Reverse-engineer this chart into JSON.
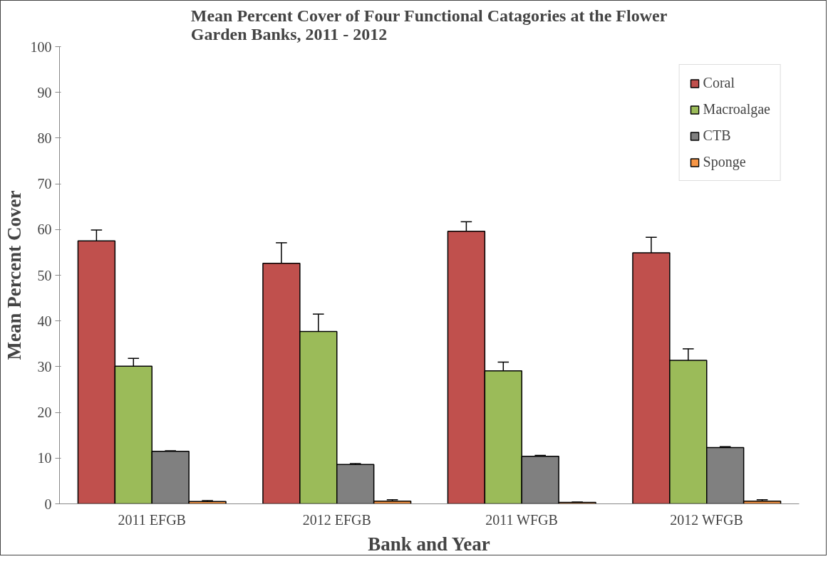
{
  "chart_data": {
    "type": "bar",
    "title": "Mean Percent Cover of Four Functional Catagories at the Flower Garden Banks, 2011 - 2012",
    "xlabel": "Bank and Year",
    "ylabel": "Mean Percent Cover",
    "categories": [
      "2011 EFGB",
      "2012 EFGB",
      "2011 WFGB",
      "2012 WFGB"
    ],
    "series": [
      {
        "name": "Coral",
        "color": "#c0504d",
        "values": [
          57.5,
          52.6,
          59.6,
          54.9
        ],
        "errors": [
          [
            57.5,
            59.9
          ],
          [
            52.6,
            57.1
          ],
          [
            59.6,
            61.7
          ],
          [
            54.9,
            58.3
          ]
        ]
      },
      {
        "name": "Macroalgae",
        "color": "#9bbb59",
        "values": [
          30.1,
          37.7,
          29.1,
          31.4
        ],
        "errors": [
          [
            30.1,
            31.8
          ],
          [
            37.7,
            41.5
          ],
          [
            29.1,
            31.0
          ],
          [
            31.4,
            33.9
          ]
        ]
      },
      {
        "name": "CTB",
        "color": "#808080",
        "values": [
          11.5,
          8.6,
          10.4,
          12.3
        ],
        "errors": [
          [
            11.5,
            11.6
          ],
          [
            8.6,
            8.8
          ],
          [
            10.4,
            10.6
          ],
          [
            12.3,
            12.5
          ]
        ]
      },
      {
        "name": "Sponge",
        "color": "#f79646",
        "values": [
          0.5,
          0.6,
          0.3,
          0.6
        ],
        "errors": [
          [
            0.5,
            0.7
          ],
          [
            0.6,
            0.9
          ],
          [
            0.3,
            0.4
          ],
          [
            0.6,
            0.9
          ]
        ]
      }
    ],
    "ylim": [
      0,
      100
    ],
    "yticks": [
      0,
      10,
      20,
      30,
      40,
      50,
      60,
      70,
      80,
      90,
      100
    ],
    "grid": false,
    "legend": "top right"
  }
}
